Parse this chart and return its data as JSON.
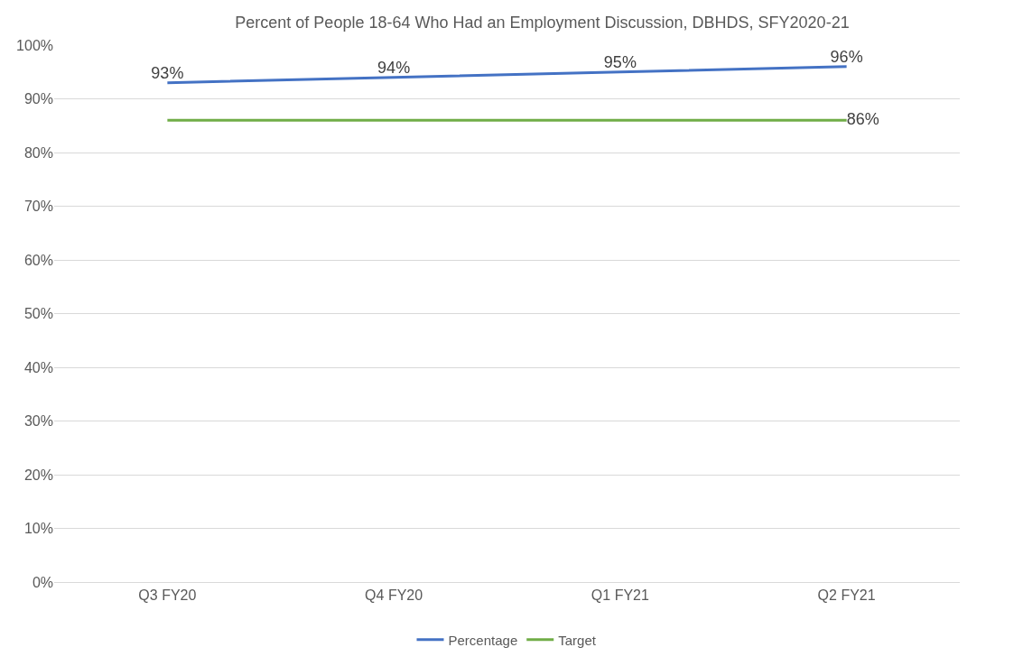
{
  "chart_data": {
    "type": "line",
    "title": "Percent of People 18-64 Who Had an Employment Discussion, DBHDS, SFY2020-21",
    "categories": [
      "Q3 FY20",
      "Q4 FY20",
      "Q1 FY21",
      "Q2 FY21"
    ],
    "series": [
      {
        "name": "Percentage",
        "color": "#4472c4",
        "values": [
          93,
          94,
          95,
          96
        ],
        "value_labels": [
          "93%",
          "94%",
          "95%",
          "96%"
        ]
      },
      {
        "name": "Target",
        "color": "#70ad47",
        "values": [
          86,
          86,
          86,
          86
        ],
        "value_labels": [
          null,
          null,
          null,
          "86%"
        ]
      }
    ],
    "ylim": [
      0,
      100
    ],
    "yticks": [
      {
        "value": 0,
        "label": "0%"
      },
      {
        "value": 10,
        "label": "10%"
      },
      {
        "value": 20,
        "label": "20%"
      },
      {
        "value": 30,
        "label": "30%"
      },
      {
        "value": 40,
        "label": "40%"
      },
      {
        "value": 50,
        "label": "50%"
      },
      {
        "value": 60,
        "label": "60%"
      },
      {
        "value": 70,
        "label": "70%"
      },
      {
        "value": 80,
        "label": "80%"
      },
      {
        "value": 90,
        "label": "90%"
      },
      {
        "value": 100,
        "label": "100%"
      }
    ],
    "grid": "y",
    "legend": "bottom",
    "marker": "none",
    "line_style": "solid"
  }
}
